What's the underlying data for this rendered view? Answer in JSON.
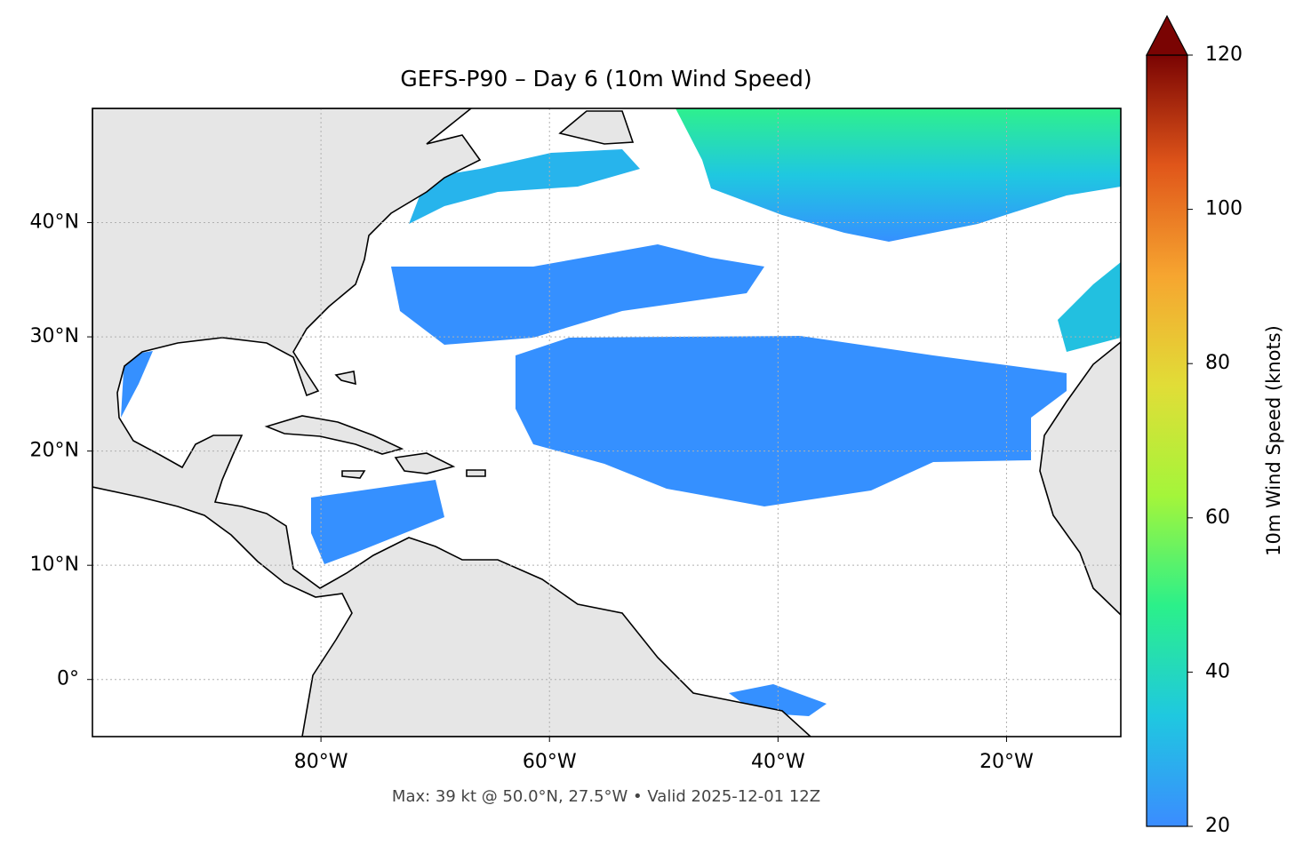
{
  "chart_data": {
    "type": "map",
    "title": "GEFS-P90 – Day 6 (10m Wind Speed)",
    "caption": "Max: 39 kt @ 50.0°N, 27.5°W • Valid 2025-12-01 12Z",
    "xlim": [
      -100,
      -10
    ],
    "ylim": [
      -5,
      50
    ],
    "xticks": [
      {
        "value": -80,
        "label": "80°W"
      },
      {
        "value": -60,
        "label": "60°W"
      },
      {
        "value": -40,
        "label": "40°W"
      },
      {
        "value": -20,
        "label": "20°W"
      }
    ],
    "yticks": [
      {
        "value": 0,
        "label": "0°"
      },
      {
        "value": 10,
        "label": "10°N"
      },
      {
        "value": 20,
        "label": "20°N"
      },
      {
        "value": 30,
        "label": "30°N"
      },
      {
        "value": 40,
        "label": "40°N"
      }
    ],
    "grid": true,
    "colorbar": {
      "label": "10m Wind Speed (knots)",
      "lim": [
        20,
        120
      ],
      "ticks": [
        20,
        40,
        60,
        80,
        100,
        120
      ],
      "colors": [
        "#3b8cff",
        "#1fc8e0",
        "#2bf08a",
        "#a4f53a",
        "#e1dd37",
        "#f6a530",
        "#e0561a",
        "#7a0403"
      ]
    }
  }
}
